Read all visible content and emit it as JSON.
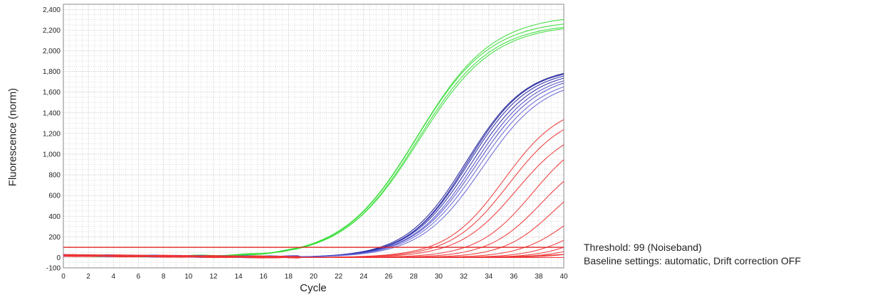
{
  "chart_data": {
    "type": "line",
    "title": "",
    "xlabel": "Cycle",
    "ylabel": "Fluorescence (norm)",
    "xlim": [
      0,
      40
    ],
    "ylim": [
      -100,
      2450
    ],
    "x_ticks": [
      0,
      2,
      4,
      6,
      8,
      10,
      12,
      14,
      16,
      18,
      20,
      22,
      24,
      26,
      28,
      30,
      32,
      34,
      36,
      38,
      40
    ],
    "y_ticks": [
      -100,
      0,
      200,
      400,
      600,
      800,
      1000,
      1200,
      1400,
      1600,
      1800,
      2000,
      2200,
      2400
    ],
    "y_tick_labels": [
      "-100",
      "0",
      "200",
      "400",
      "600",
      "800",
      "1,000",
      "1,200",
      "1,400",
      "1,600",
      "1,800",
      "2,000",
      "2,200",
      "2,400"
    ],
    "grid": true,
    "threshold": 99,
    "series": [
      {
        "color": "#33dd33",
        "model": {
          "plateau": 2350,
          "midpoint": 28.3,
          "slope": 3.0
        }
      },
      {
        "color": "#33dd33",
        "model": {
          "plateau": 2300,
          "midpoint": 28.2,
          "slope": 2.95
        }
      },
      {
        "color": "#33dd33",
        "model": {
          "plateau": 2270,
          "midpoint": 28.3,
          "slope": 2.95
        }
      },
      {
        "color": "#33dd33",
        "model": {
          "plateau": 2260,
          "midpoint": 28.4,
          "slope": 3.0
        }
      },
      {
        "color": "#1a1a99",
        "model": {
          "plateau": 1850,
          "midpoint": 32.2,
          "slope": 2.4
        }
      },
      {
        "color": "#1a1a99",
        "model": {
          "plateau": 1840,
          "midpoint": 32.3,
          "slope": 2.35
        }
      },
      {
        "color": "#2424a8",
        "model": {
          "plateau": 1830,
          "midpoint": 32.4,
          "slope": 2.4
        }
      },
      {
        "color": "#2424a8",
        "model": {
          "plateau": 1820,
          "midpoint": 32.6,
          "slope": 2.45
        }
      },
      {
        "color": "#4b4bc8",
        "model": {
          "plateau": 1800,
          "midpoint": 32.8,
          "slope": 2.45
        }
      },
      {
        "color": "#4b4bc8",
        "model": {
          "plateau": 1790,
          "midpoint": 33.0,
          "slope": 2.5
        }
      },
      {
        "color": "#6464d8",
        "model": {
          "plateau": 1760,
          "midpoint": 33.2,
          "slope": 2.5
        }
      },
      {
        "color": "#6464d8",
        "model": {
          "plateau": 1740,
          "midpoint": 33.5,
          "slope": 2.5
        }
      },
      {
        "color": "#ee3333",
        "model": {
          "plateau": 1500,
          "midpoint": 35.2,
          "slope": 2.3
        }
      },
      {
        "color": "#ee3333",
        "model": {
          "plateau": 1420,
          "midpoint": 35.6,
          "slope": 2.3
        }
      },
      {
        "color": "#ee3333",
        "model": {
          "plateau": 1300,
          "midpoint": 36.2,
          "slope": 2.3
        }
      },
      {
        "color": "#ee3333",
        "model": {
          "plateau": 1250,
          "midpoint": 37.5,
          "slope": 2.2
        }
      },
      {
        "color": "#ee3333",
        "model": {
          "plateau": 1050,
          "midpoint": 38.2,
          "slope": 2.1
        }
      },
      {
        "color": "#ee3333",
        "model": {
          "plateau": 900,
          "midpoint": 39.2,
          "slope": 2.0
        }
      },
      {
        "color": "#ee3333",
        "model": {
          "plateau": 700,
          "midpoint": 40.5,
          "slope": 2.0
        }
      },
      {
        "color": "#ee3333",
        "model": {
          "plateau": 500,
          "midpoint": 41.3,
          "slope": 1.9
        }
      },
      {
        "color": "#ee3333",
        "model": {
          "plateau": 400,
          "midpoint": 42.0,
          "slope": 1.8
        }
      },
      {
        "color": "#ee3333",
        "model": {
          "plateau": 300,
          "midpoint": 42.6,
          "slope": 1.8
        }
      },
      {
        "color": "#ee3333",
        "model": {
          "plateau": 200,
          "midpoint": 43.2,
          "slope": 1.8
        }
      },
      {
        "color": "#ee3333",
        "model": {
          "plateau": 60,
          "midpoint": 40.0,
          "slope": 2.5
        }
      },
      {
        "color": "#ee3333",
        "model": {
          "plateau": 0,
          "midpoint": 40.0,
          "slope": 2.5
        }
      }
    ]
  },
  "notes": {
    "threshold": "Threshold: 99 (Noiseband)",
    "baseline": "Baseline settings: automatic, Drift correction OFF"
  },
  "colors": {
    "grid_minor": "#d6d6d6",
    "grid_major": "#b5b5b5",
    "threshold_line": "#e02020",
    "axis_text": "#222222"
  }
}
